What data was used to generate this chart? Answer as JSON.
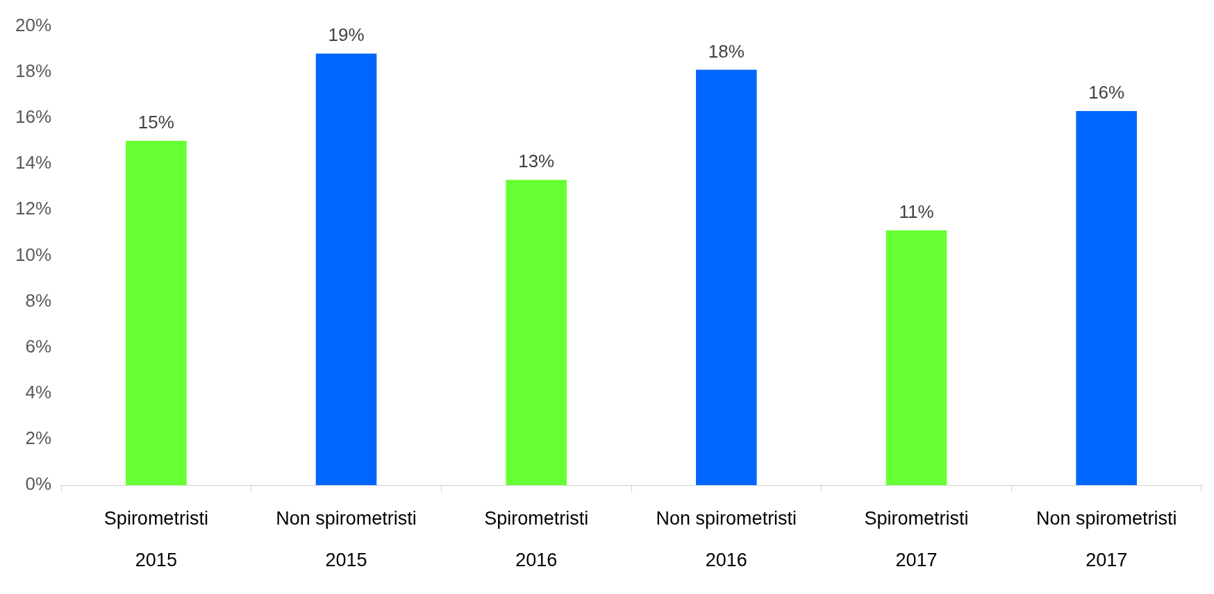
{
  "chart_data": {
    "type": "bar",
    "categories": [
      "Spirometristi\n2015",
      "Non spirometristi\n2015",
      "Spirometristi\n2016",
      "Non spirometristi\n2016",
      "Spirometristi\n2017",
      "Non spirometristi\n2017"
    ],
    "values": [
      15.0,
      18.8,
      13.3,
      18.1,
      11.1,
      16.3
    ],
    "value_labels": [
      "15%",
      "19%",
      "13%",
      "18%",
      "11%",
      "16%"
    ],
    "colors": [
      "#66ff33",
      "#0066ff",
      "#66ff33",
      "#0066ff",
      "#66ff33",
      "#0066ff"
    ],
    "ylim": [
      0,
      20
    ],
    "yticks": [
      {
        "value": 0,
        "label": "0%"
      },
      {
        "value": 2,
        "label": "2%"
      },
      {
        "value": 4,
        "label": "4%"
      },
      {
        "value": 6,
        "label": "6%"
      },
      {
        "value": 8,
        "label": "8%"
      },
      {
        "value": 10,
        "label": "10%"
      },
      {
        "value": 12,
        "label": "12%"
      },
      {
        "value": 14,
        "label": "14%"
      },
      {
        "value": 16,
        "label": "16%"
      },
      {
        "value": 18,
        "label": "18%"
      },
      {
        "value": 20,
        "label": "20%"
      }
    ],
    "grid": false,
    "legend": false
  }
}
